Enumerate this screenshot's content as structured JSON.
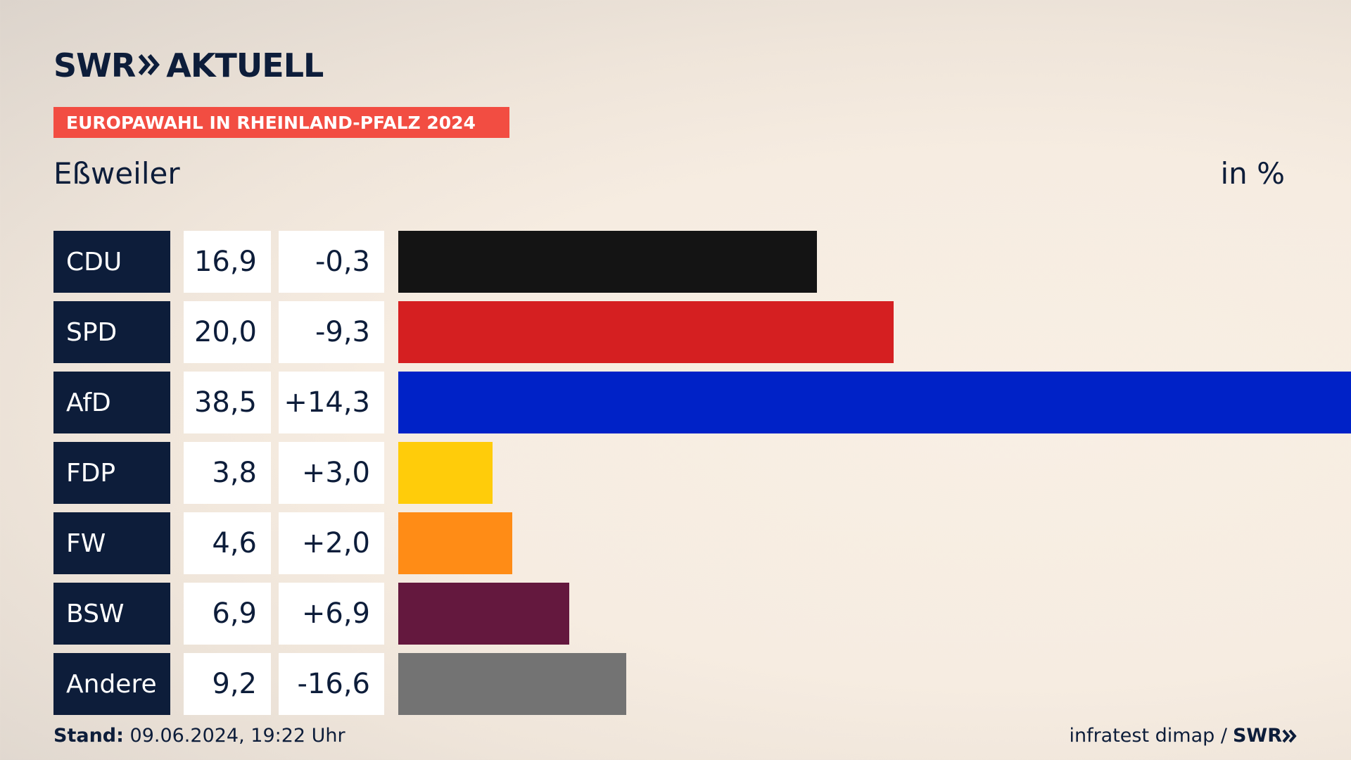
{
  "brand": {
    "swr": "SWR",
    "aktuell": "AKTUELL"
  },
  "banner": "EUROPAWAHL IN RHEINLAND-PFALZ 2024",
  "location": "Eßweiler",
  "unit": "in %",
  "footer": {
    "stand_label": "Stand:",
    "stand_value": "09.06.2024, 19:22 Uhr",
    "source": "infratest dimap /",
    "source_brand": "SWR"
  },
  "colors": {
    "navy": "#0d1d3a",
    "banner": "#f24d42"
  },
  "chart_data": {
    "type": "bar",
    "categories": [
      "CDU",
      "SPD",
      "AfD",
      "FDP",
      "FW",
      "BSW",
      "Andere"
    ],
    "values": [
      16.9,
      20.0,
      38.5,
      3.8,
      4.6,
      6.9,
      9.2
    ],
    "value_labels": [
      "16,9",
      "20,0",
      "38,5",
      "3,8",
      "4,6",
      "6,9",
      "9,2"
    ],
    "diff_labels": [
      "-0,3",
      "-9,3",
      "+14,3",
      "+3,0",
      "+2,0",
      "+6,9",
      "-16,6"
    ],
    "diffs": [
      -0.3,
      -9.3,
      14.3,
      3.0,
      2.0,
      6.9,
      -16.6
    ],
    "colors": [
      "#141414",
      "#d51f21",
      "#0022c7",
      "#ffcc0a",
      "#ff8c16",
      "#64183e",
      "#737373"
    ],
    "ylabel": "in %",
    "grid": false,
    "legend": "none"
  }
}
